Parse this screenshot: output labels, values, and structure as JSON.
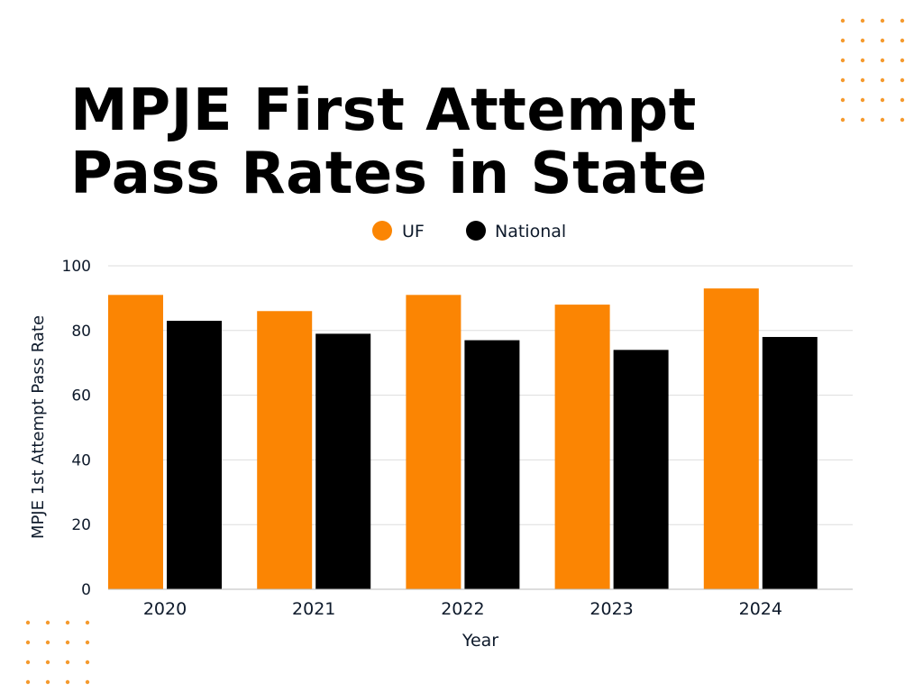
{
  "title_line1": "MPJE First Attempt",
  "title_line2": "Pass Rates in State",
  "colors": {
    "uf": "#FB8503",
    "national": "#000000",
    "accent_dots": "#F59A2E",
    "grid": "#DDDDDD",
    "text": "#0E1A2B"
  },
  "chart_data": {
    "type": "bar",
    "title": "MPJE First Attempt Pass Rates in State",
    "xlabel": "Year",
    "ylabel": "MPJE 1st Attempt Pass Rate",
    "categories": [
      "2020",
      "2021",
      "2022",
      "2023",
      "2024"
    ],
    "series": [
      {
        "name": "UF",
        "color": "#FB8503",
        "values": [
          91,
          86,
          91,
          88,
          93
        ]
      },
      {
        "name": "National",
        "color": "#000000",
        "values": [
          83,
          79,
          77,
          74,
          78
        ]
      }
    ],
    "ylim": [
      0,
      100
    ],
    "yticks": [
      0,
      20,
      40,
      60,
      80,
      100
    ],
    "legend_position": "top-center",
    "grid": true
  }
}
